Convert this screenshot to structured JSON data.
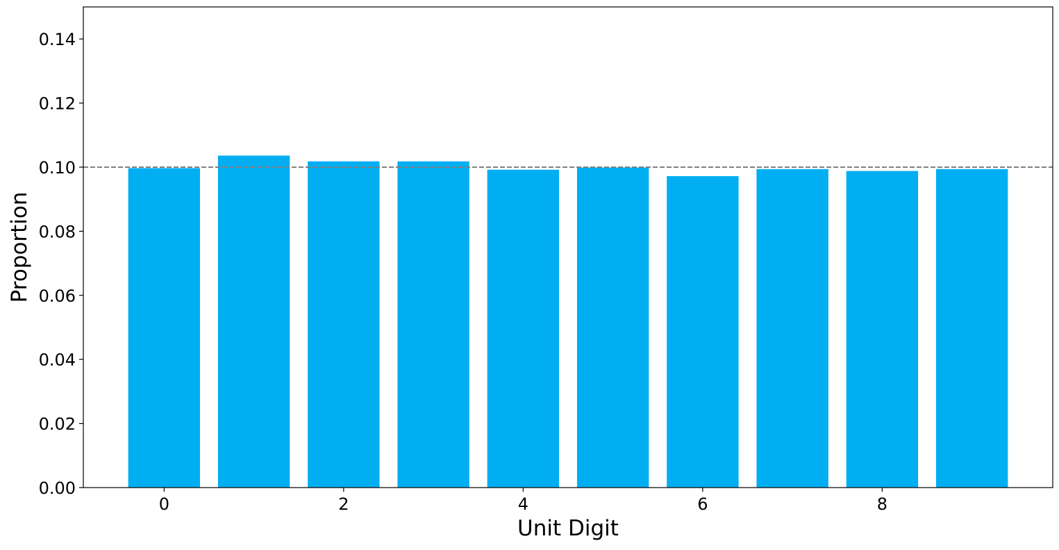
{
  "chart_data": {
    "type": "bar",
    "title": "",
    "xlabel": "Unit Digit",
    "ylabel": "Proportion",
    "categories": [
      0,
      1,
      2,
      3,
      4,
      5,
      6,
      7,
      8,
      9
    ],
    "values": [
      0.0997,
      0.1036,
      0.1018,
      0.1018,
      0.0992,
      0.0999,
      0.0972,
      0.0994,
      0.0988,
      0.0994
    ],
    "xlim": [
      -0.9,
      9.9
    ],
    "ylim": [
      0,
      0.15
    ],
    "x_ticks": [
      0,
      2,
      4,
      6,
      8
    ],
    "x_tick_labels": [
      "0",
      "2",
      "4",
      "6",
      "8"
    ],
    "y_ticks": [
      0,
      0.02,
      0.04,
      0.06,
      0.08,
      0.1,
      0.12,
      0.14
    ],
    "y_tick_labels": [
      "0.00",
      "0.02",
      "0.04",
      "0.06",
      "0.08",
      "0.10",
      "0.12",
      "0.14"
    ],
    "reference_line": {
      "y": 0.1,
      "style": "dashed",
      "color": "#808080"
    },
    "bar_color": "#02aef2",
    "grid": false,
    "legend": "none"
  }
}
